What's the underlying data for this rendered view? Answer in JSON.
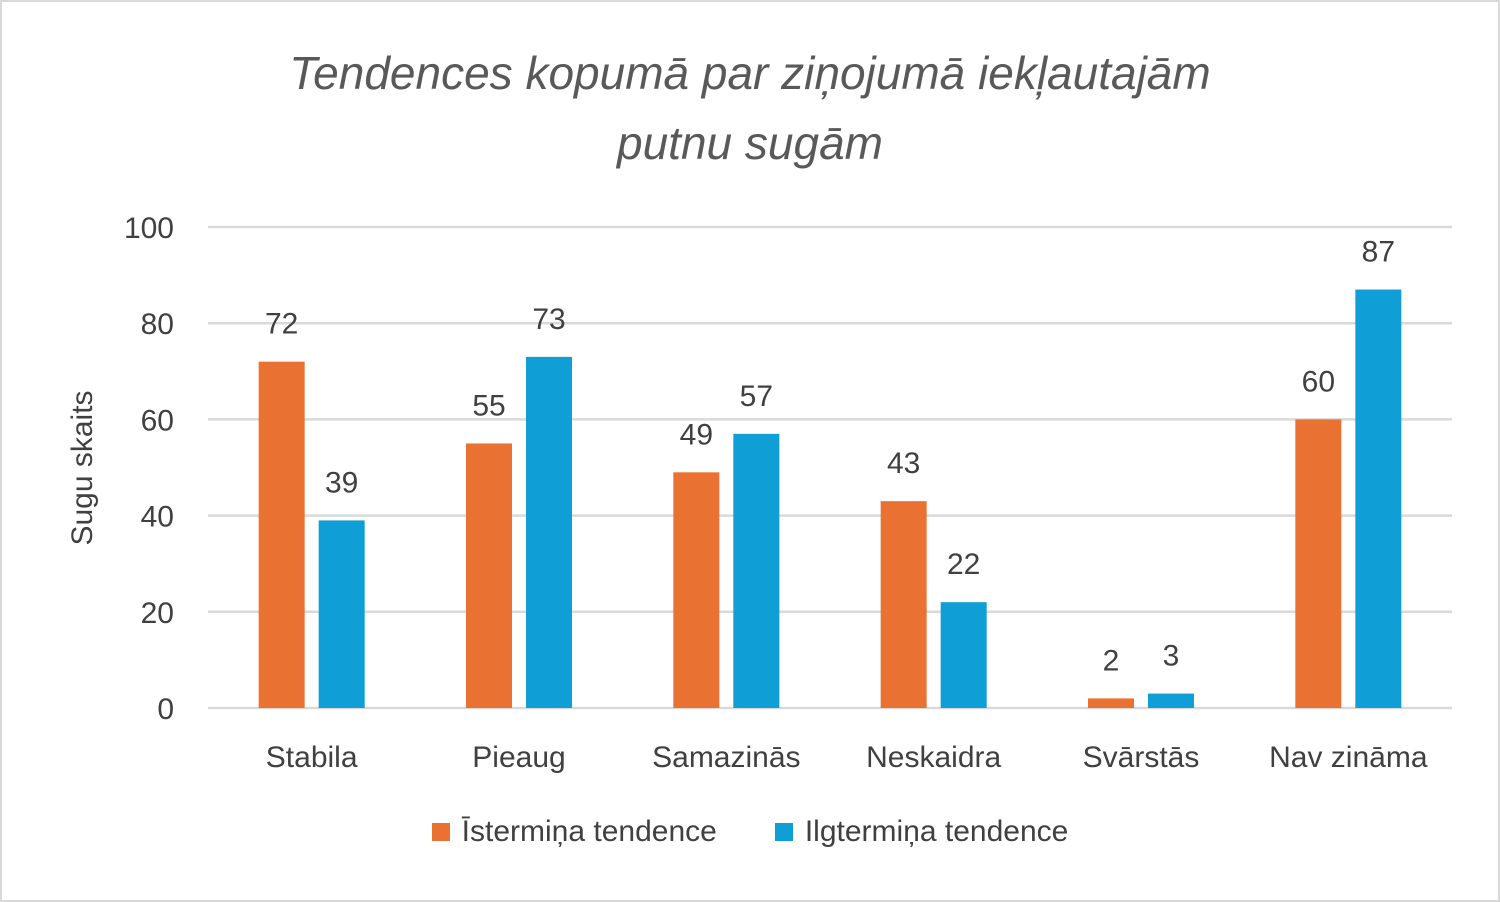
{
  "chart_data": {
    "type": "bar",
    "title": "Tendences kopumā par ziņojumā iekļautajām putnu sugām",
    "title_lines": [
      "Tendences kopumā par ziņojumā iekļautajām",
      "putnu sugām"
    ],
    "xlabel": "",
    "ylabel": "Sugu skaits",
    "ylim": [
      0,
      100
    ],
    "yticks": [
      0,
      20,
      40,
      60,
      80,
      100
    ],
    "grid": true,
    "legend_position": "bottom",
    "categories": [
      "Stabila",
      "Pieaug",
      "Samazinās",
      "Neskaidra",
      "Svārstās",
      "Nav zināma"
    ],
    "series": [
      {
        "name": "Īstermiņa tendence",
        "color": "#e97132",
        "values": [
          72,
          55,
          49,
          43,
          2,
          60
        ]
      },
      {
        "name": "Ilgtermiņa tendence",
        "color": "#0f9ed5",
        "values": [
          39,
          73,
          57,
          22,
          3,
          87
        ]
      }
    ]
  }
}
